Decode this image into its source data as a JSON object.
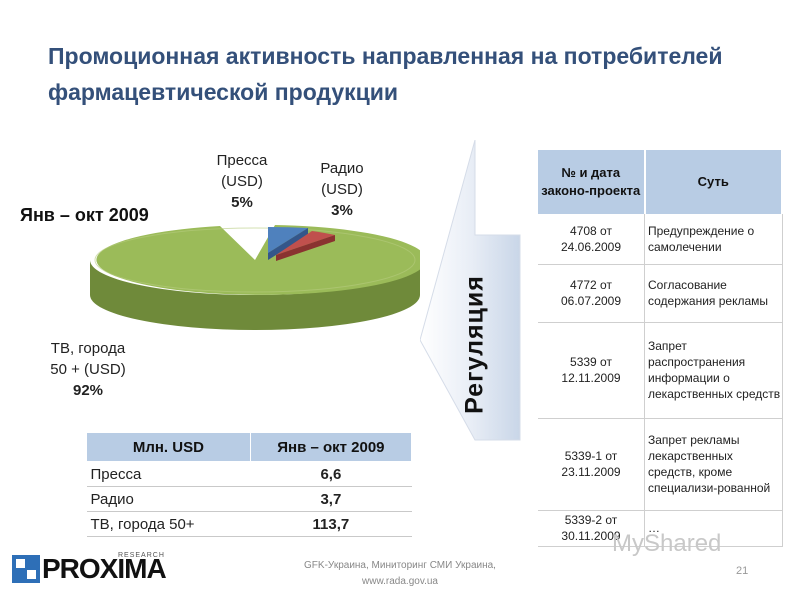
{
  "title": "Промоционная активность направленная на потребителей фармацевтической продукции",
  "pie": {
    "period": "Янв – окт 2009",
    "slices": [
      {
        "name": "Пресса (USD)",
        "line1": "Пресса",
        "line2": "(USD)",
        "percent_label": "5%",
        "color": "#4f81bd"
      },
      {
        "name": "Радио (USD)",
        "line1": "Радио",
        "line2": "(USD)",
        "percent_label": "3%",
        "color": "#c0504d"
      },
      {
        "name": "ТВ, города 50 + (USD)",
        "line1": "ТВ, города",
        "line2": "50 + (USD)",
        "percent_label": "92%",
        "color": "#9bbb59"
      }
    ]
  },
  "chart_data": {
    "type": "pie",
    "title": "Янв – окт 2009",
    "categories": [
      "Пресса (USD)",
      "Радио (USD)",
      "ТВ, города 50 + (USD)"
    ],
    "values": [
      5,
      3,
      92
    ]
  },
  "summary_table": {
    "headers": [
      "Млн. USD",
      "Янв – окт 2009"
    ],
    "rows": [
      {
        "label": "Пресса",
        "value": "6,6"
      },
      {
        "label": "Радио",
        "value": "3,7"
      },
      {
        "label": "ТВ, города 50+",
        "value": "113,7"
      }
    ]
  },
  "regulation_label": "Регуляция",
  "law_table": {
    "headers": [
      "№ и дата законо-проекта",
      "Суть"
    ],
    "rows": [
      {
        "num": "4708 от 24.06.2009",
        "desc": "Предупреждение о самолечении"
      },
      {
        "num": "4772 от 06.07.2009",
        "desc": "Согласование содержания рекламы"
      },
      {
        "num": "5339 от 12.11.2009",
        "desc": "Запрет распространения информации о лекарственных средств"
      },
      {
        "num": "5339-1 от 23.11.2009",
        "desc": "Запрет рекламы лекарственных средств, кроме специализи-рованной"
      },
      {
        "num": "5339-2 от 30.11.2009",
        "desc": "…"
      }
    ]
  },
  "footer": {
    "logo": "PROXIMA",
    "logo_sub": "RESEARCH",
    "source": "GFK-Украина, Миниторинг СМИ Украина, www.rada.gov.ua",
    "page": "21",
    "watermark": "MyShared"
  }
}
